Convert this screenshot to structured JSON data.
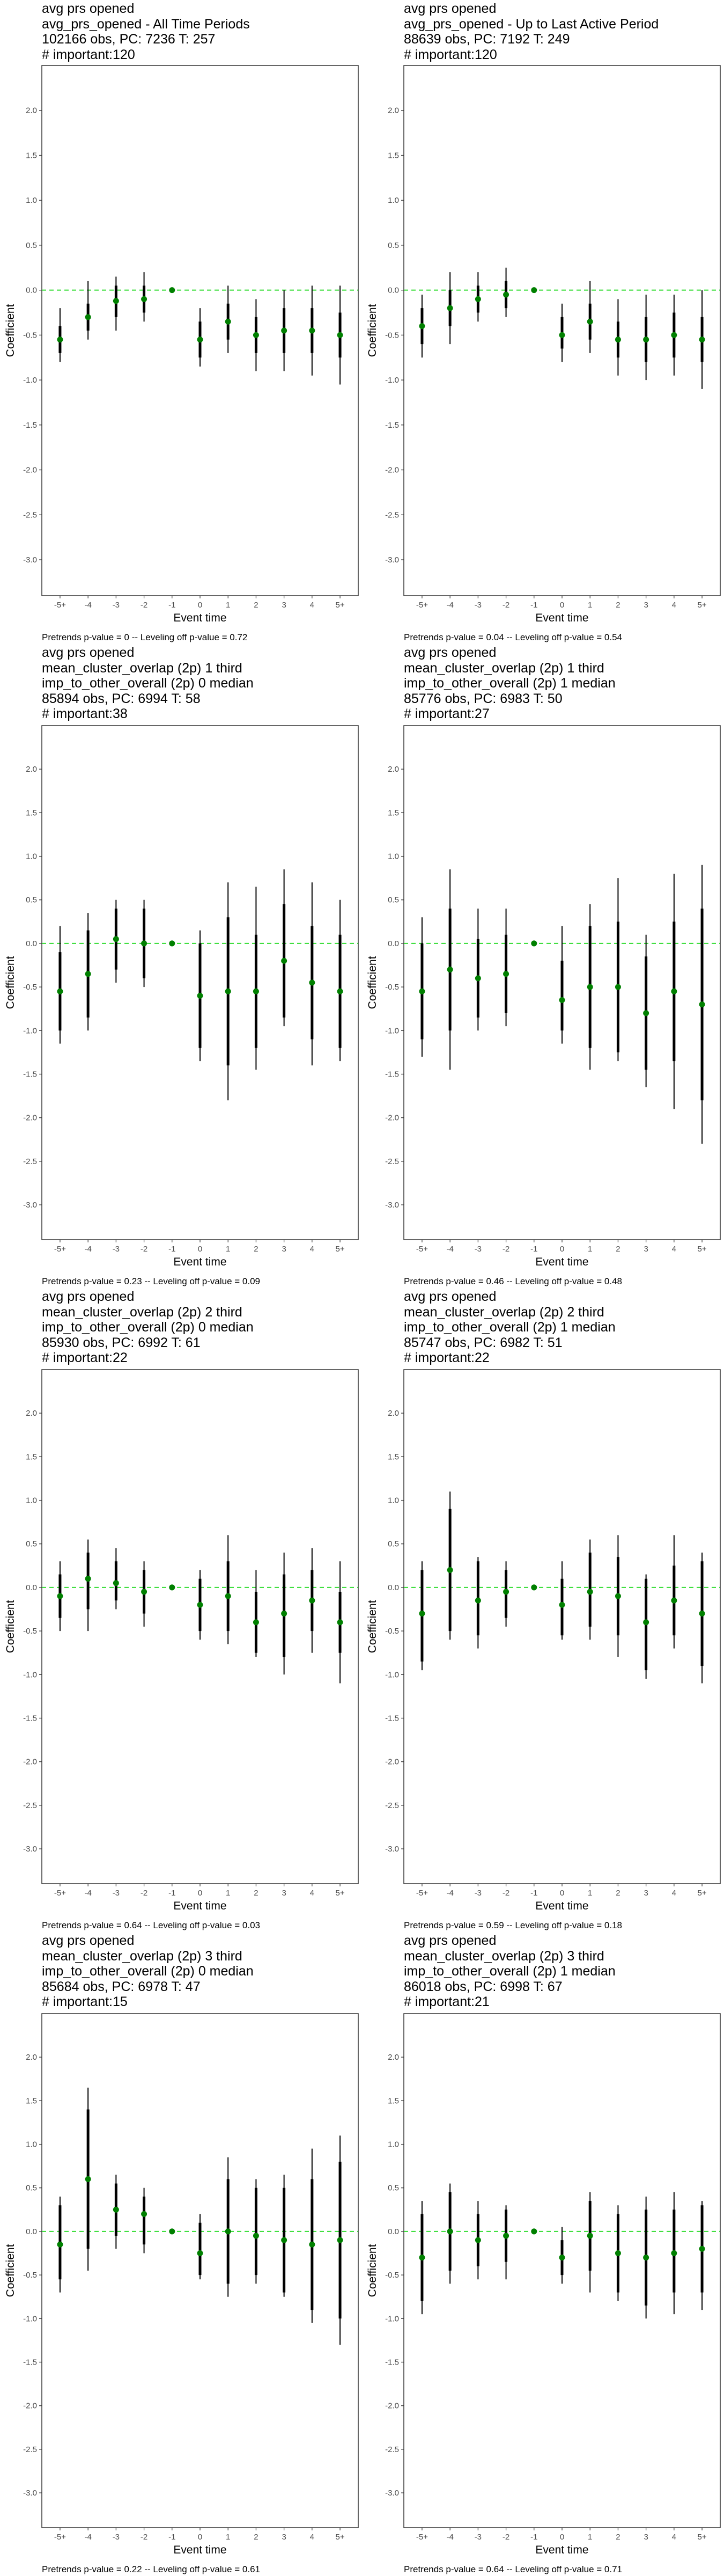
{
  "chart_data": [
    {
      "type": "errorbar",
      "title_lines": [
        "avg prs opened",
        "avg_prs_opened - All Time Periods",
        "102166 obs, PC: 7236 T: 257",
        "# important:120"
      ],
      "xlabel": "Event time",
      "ylabel": "Coefficient",
      "ylim": [
        -3.4,
        2.5
      ],
      "yticks": [
        2.0,
        1.5,
        1.0,
        0.5,
        0.0,
        -0.5,
        -1.0,
        -1.5,
        -2.0,
        -2.5,
        -3.0
      ],
      "ytick_labels": [
        "2.0",
        "1.5",
        "1.0",
        "0.5",
        "0.0",
        "-0.5",
        "-1.0",
        "-1.5",
        "-2.0",
        "-2.5",
        "-3.0"
      ],
      "categories": [
        "-5+",
        "-4",
        "-3",
        "-2",
        "-1",
        "0",
        "1",
        "2",
        "3",
        "4",
        "5+"
      ],
      "estimates": [
        -0.55,
        -0.3,
        -0.12,
        -0.1,
        0.0,
        -0.55,
        -0.35,
        -0.5,
        -0.45,
        -0.45,
        -0.5
      ],
      "ci_inner_low": [
        -0.7,
        -0.45,
        -0.3,
        -0.25,
        0.0,
        -0.75,
        -0.55,
        -0.7,
        -0.7,
        -0.7,
        -0.75
      ],
      "ci_inner_high": [
        -0.4,
        -0.15,
        0.05,
        0.05,
        0.0,
        -0.35,
        -0.15,
        -0.3,
        -0.2,
        -0.2,
        -0.25
      ],
      "ci_outer_low": [
        -0.8,
        -0.55,
        -0.45,
        -0.35,
        0.0,
        -0.85,
        -0.7,
        -0.9,
        -0.9,
        -0.95,
        -1.05
      ],
      "ci_outer_high": [
        -0.2,
        0.1,
        0.15,
        0.2,
        0.0,
        -0.2,
        0.05,
        -0.1,
        0.0,
        0.05,
        0.05
      ],
      "footer": "Pretrends p-value = 0 -- Leveling off p-value = 0.72"
    },
    {
      "type": "errorbar",
      "title_lines": [
        "avg prs opened",
        "avg_prs_opened - Up to Last Active Period",
        "88639 obs, PC: 7192 T: 249",
        "# important:120"
      ],
      "xlabel": "Event time",
      "ylabel": "Coefficient",
      "ylim": [
        -3.4,
        2.5
      ],
      "yticks": [
        2.0,
        1.5,
        1.0,
        0.5,
        0.0,
        -0.5,
        -1.0,
        -1.5,
        -2.0,
        -2.5,
        -3.0
      ],
      "ytick_labels": [
        "2.0",
        "1.5",
        "1.0",
        "0.5",
        "0.0",
        "-0.5",
        "-1.0",
        "-1.5",
        "-2.0",
        "-2.5",
        "-3.0"
      ],
      "categories": [
        "-5+",
        "-4",
        "-3",
        "-2",
        "-1",
        "0",
        "1",
        "2",
        "3",
        "4",
        "5+"
      ],
      "estimates": [
        -0.4,
        -0.2,
        -0.1,
        -0.05,
        0.0,
        -0.5,
        -0.35,
        -0.55,
        -0.55,
        -0.5,
        -0.55
      ],
      "ci_inner_low": [
        -0.6,
        -0.4,
        -0.25,
        -0.2,
        0.0,
        -0.65,
        -0.55,
        -0.75,
        -0.8,
        -0.75,
        -0.8
      ],
      "ci_inner_high": [
        -0.2,
        0.0,
        0.05,
        0.1,
        0.0,
        -0.3,
        -0.15,
        -0.35,
        -0.3,
        -0.25,
        -0.3
      ],
      "ci_outer_low": [
        -0.75,
        -0.6,
        -0.35,
        -0.3,
        0.0,
        -0.8,
        -0.7,
        -0.95,
        -1.0,
        -0.95,
        -1.1
      ],
      "ci_outer_high": [
        -0.05,
        0.2,
        0.2,
        0.25,
        0.0,
        -0.15,
        0.1,
        -0.1,
        -0.05,
        -0.05,
        0.0
      ],
      "footer": "Pretrends p-value = 0.04 -- Leveling off p-value = 0.54"
    },
    {
      "type": "errorbar",
      "title_lines": [
        "avg prs opened",
        "mean_cluster_overlap (2p) 1 third",
        "imp_to_other_overall (2p) 0 median",
        "85894 obs, PC: 6994 T: 58",
        "# important:38"
      ],
      "xlabel": "Event time",
      "ylabel": "Coefficient",
      "ylim": [
        -3.4,
        2.5
      ],
      "yticks": [
        2.0,
        1.5,
        1.0,
        0.5,
        0.0,
        -0.5,
        -1.0,
        -1.5,
        -2.0,
        -2.5,
        -3.0
      ],
      "ytick_labels": [
        "2.0",
        "1.5",
        "1.0",
        "0.5",
        "0.0",
        "-0.5",
        "-1.0",
        "-1.5",
        "-2.0",
        "-2.5",
        "-3.0"
      ],
      "categories": [
        "-5+",
        "-4",
        "-3",
        "-2",
        "-1",
        "0",
        "1",
        "2",
        "3",
        "4",
        "5+"
      ],
      "estimates": [
        -0.55,
        -0.35,
        0.05,
        0.0,
        0.0,
        -0.6,
        -0.55,
        -0.55,
        -0.2,
        -0.45,
        -0.55
      ],
      "ci_inner_low": [
        -1.0,
        -0.85,
        -0.3,
        -0.4,
        0.0,
        -1.2,
        -1.4,
        -1.2,
        -0.85,
        -1.1,
        -1.2
      ],
      "ci_inner_high": [
        -0.1,
        0.15,
        0.4,
        0.4,
        0.0,
        0.0,
        0.3,
        0.1,
        0.45,
        0.2,
        0.1
      ],
      "ci_outer_low": [
        -1.15,
        -1.0,
        -0.45,
        -0.5,
        0.0,
        -1.35,
        -1.8,
        -1.45,
        -0.95,
        -1.4,
        -1.35
      ],
      "ci_outer_high": [
        0.2,
        0.35,
        0.5,
        0.5,
        0.0,
        0.15,
        0.7,
        0.65,
        0.85,
        0.7,
        0.5
      ],
      "footer": "Pretrends p-value = 0.23 -- Leveling off p-value = 0.09"
    },
    {
      "type": "errorbar",
      "title_lines": [
        "avg prs opened",
        "mean_cluster_overlap (2p) 1 third",
        "imp_to_other_overall (2p) 1 median",
        "85776 obs, PC: 6983 T: 50",
        "# important:27"
      ],
      "xlabel": "Event time",
      "ylabel": "Coefficient",
      "ylim": [
        -3.4,
        2.5
      ],
      "yticks": [
        2.0,
        1.5,
        1.0,
        0.5,
        0.0,
        -0.5,
        -1.0,
        -1.5,
        -2.0,
        -2.5,
        -3.0
      ],
      "ytick_labels": [
        "2.0",
        "1.5",
        "1.0",
        "0.5",
        "0.0",
        "-0.5",
        "-1.0",
        "-1.5",
        "-2.0",
        "-2.5",
        "-3.0"
      ],
      "categories": [
        "-5+",
        "-4",
        "-3",
        "-2",
        "-1",
        "0",
        "1",
        "2",
        "3",
        "4",
        "5+"
      ],
      "estimates": [
        -0.55,
        -0.3,
        -0.4,
        -0.35,
        0.0,
        -0.65,
        -0.5,
        -0.5,
        -0.8,
        -0.55,
        -0.7
      ],
      "ci_inner_low": [
        -1.1,
        -1.0,
        -0.85,
        -0.8,
        0.0,
        -1.0,
        -1.2,
        -1.25,
        -1.45,
        -1.35,
        -1.8
      ],
      "ci_inner_high": [
        0.0,
        0.4,
        0.05,
        0.1,
        0.0,
        -0.2,
        0.2,
        0.25,
        -0.15,
        0.25,
        0.4
      ],
      "ci_outer_low": [
        -1.3,
        -1.45,
        -1.0,
        -0.95,
        0.0,
        -1.15,
        -1.45,
        -1.35,
        -1.65,
        -1.9,
        -2.3
      ],
      "ci_outer_high": [
        0.3,
        0.85,
        0.4,
        0.4,
        0.0,
        0.2,
        0.45,
        0.75,
        0.1,
        0.8,
        0.9
      ],
      "footer": "Pretrends p-value = 0.46 -- Leveling off p-value = 0.48"
    },
    {
      "type": "errorbar",
      "title_lines": [
        "avg prs opened",
        "mean_cluster_overlap (2p) 2 third",
        "imp_to_other_overall (2p) 0 median",
        "85930 obs, PC: 6992 T: 61",
        "# important:22"
      ],
      "xlabel": "Event time",
      "ylabel": "Coefficient",
      "ylim": [
        -3.4,
        2.5
      ],
      "yticks": [
        2.0,
        1.5,
        1.0,
        0.5,
        0.0,
        -0.5,
        -1.0,
        -1.5,
        -2.0,
        -2.5,
        -3.0
      ],
      "ytick_labels": [
        "2.0",
        "1.5",
        "1.0",
        "0.5",
        "0.0",
        "-0.5",
        "-1.0",
        "-1.5",
        "-2.0",
        "-2.5",
        "-3.0"
      ],
      "categories": [
        "-5+",
        "-4",
        "-3",
        "-2",
        "-1",
        "0",
        "1",
        "2",
        "3",
        "4",
        "5+"
      ],
      "estimates": [
        -0.1,
        0.1,
        0.05,
        -0.05,
        0.0,
        -0.2,
        -0.1,
        -0.4,
        -0.3,
        -0.15,
        -0.4
      ],
      "ci_inner_low": [
        -0.35,
        -0.25,
        -0.15,
        -0.3,
        0.0,
        -0.5,
        -0.5,
        -0.75,
        -0.8,
        -0.5,
        -0.75
      ],
      "ci_inner_high": [
        0.15,
        0.4,
        0.3,
        0.2,
        0.0,
        0.1,
        0.3,
        -0.05,
        0.15,
        0.2,
        -0.05
      ],
      "ci_outer_low": [
        -0.5,
        -0.5,
        -0.25,
        -0.45,
        0.0,
        -0.6,
        -0.65,
        -0.8,
        -1.0,
        -0.75,
        -1.1
      ],
      "ci_outer_high": [
        0.3,
        0.55,
        0.45,
        0.3,
        0.0,
        0.2,
        0.6,
        0.2,
        0.4,
        0.45,
        0.3
      ],
      "footer": "Pretrends p-value = 0.64 -- Leveling off p-value = 0.03"
    },
    {
      "type": "errorbar",
      "title_lines": [
        "avg prs opened",
        "mean_cluster_overlap (2p) 2 third",
        "imp_to_other_overall (2p) 1 median",
        "85747 obs, PC: 6982 T: 51",
        "# important:22"
      ],
      "xlabel": "Event time",
      "ylabel": "Coefficient",
      "ylim": [
        -3.4,
        2.5
      ],
      "yticks": [
        2.0,
        1.5,
        1.0,
        0.5,
        0.0,
        -0.5,
        -1.0,
        -1.5,
        -2.0,
        -2.5,
        -3.0
      ],
      "ytick_labels": [
        "2.0",
        "1.5",
        "1.0",
        "0.5",
        "0.0",
        "-0.5",
        "-1.0",
        "-1.5",
        "-2.0",
        "-2.5",
        "-3.0"
      ],
      "categories": [
        "-5+",
        "-4",
        "-3",
        "-2",
        "-1",
        "0",
        "1",
        "2",
        "3",
        "4",
        "5+"
      ],
      "estimates": [
        -0.3,
        0.2,
        -0.15,
        -0.05,
        0.0,
        -0.2,
        -0.05,
        -0.1,
        -0.4,
        -0.15,
        -0.3
      ],
      "ci_inner_low": [
        -0.85,
        -0.5,
        -0.55,
        -0.35,
        0.0,
        -0.55,
        -0.45,
        -0.55,
        -0.95,
        -0.55,
        -0.9
      ],
      "ci_inner_high": [
        0.2,
        0.9,
        0.3,
        0.2,
        0.0,
        0.1,
        0.4,
        0.35,
        0.1,
        0.25,
        0.3
      ],
      "ci_outer_low": [
        -0.95,
        -0.6,
        -0.7,
        -0.45,
        0.0,
        -0.6,
        -0.6,
        -0.8,
        -1.05,
        -0.7,
        -1.1
      ],
      "ci_outer_high": [
        0.3,
        1.1,
        0.35,
        0.3,
        0.0,
        0.3,
        0.55,
        0.6,
        0.15,
        0.6,
        0.4
      ],
      "footer": "Pretrends p-value = 0.59 -- Leveling off p-value = 0.18"
    },
    {
      "type": "errorbar",
      "title_lines": [
        "avg prs opened",
        "mean_cluster_overlap (2p) 3 third",
        "imp_to_other_overall (2p) 0 median",
        "85684 obs, PC: 6978 T: 47",
        "# important:15"
      ],
      "xlabel": "Event time",
      "ylabel": "Coefficient",
      "ylim": [
        -3.4,
        2.5
      ],
      "yticks": [
        2.0,
        1.5,
        1.0,
        0.5,
        0.0,
        -0.5,
        -1.0,
        -1.5,
        -2.0,
        -2.5,
        -3.0
      ],
      "ytick_labels": [
        "2.0",
        "1.5",
        "1.0",
        "0.5",
        "0.0",
        "-0.5",
        "-1.0",
        "-1.5",
        "-2.0",
        "-2.5",
        "-3.0"
      ],
      "categories": [
        "-5+",
        "-4",
        "-3",
        "-2",
        "-1",
        "0",
        "1",
        "2",
        "3",
        "4",
        "5+"
      ],
      "estimates": [
        -0.15,
        0.6,
        0.25,
        0.2,
        0.0,
        -0.25,
        0.0,
        -0.05,
        -0.1,
        -0.15,
        -0.1
      ],
      "ci_inner_low": [
        -0.55,
        -0.2,
        -0.05,
        -0.15,
        0.0,
        -0.5,
        -0.6,
        -0.5,
        -0.7,
        -0.9,
        -1.0
      ],
      "ci_inner_high": [
        0.3,
        1.4,
        0.55,
        0.4,
        0.0,
        0.1,
        0.6,
        0.5,
        0.5,
        0.6,
        0.8
      ],
      "ci_outer_low": [
        -0.7,
        -0.45,
        -0.2,
        -0.25,
        0.0,
        -0.55,
        -0.75,
        -0.6,
        -0.75,
        -1.05,
        -1.3
      ],
      "ci_outer_high": [
        0.4,
        1.65,
        0.65,
        0.5,
        0.0,
        0.2,
        0.85,
        0.6,
        0.65,
        0.95,
        1.1
      ],
      "footer": "Pretrends p-value = 0.22 -- Leveling off p-value = 0.61"
    },
    {
      "type": "errorbar",
      "title_lines": [
        "avg prs opened",
        "mean_cluster_overlap (2p) 3 third",
        "imp_to_other_overall (2p) 1 median",
        "86018 obs, PC: 6998 T: 67",
        "# important:21"
      ],
      "xlabel": "Event time",
      "ylabel": "Coefficient",
      "ylim": [
        -3.4,
        2.5
      ],
      "yticks": [
        2.0,
        1.5,
        1.0,
        0.5,
        0.0,
        -0.5,
        -1.0,
        -1.5,
        -2.0,
        -2.5,
        -3.0
      ],
      "ytick_labels": [
        "2.0",
        "1.5",
        "1.0",
        "0.5",
        "0.0",
        "-0.5",
        "-1.0",
        "-1.5",
        "-2.0",
        "-2.5",
        "-3.0"
      ],
      "categories": [
        "-5+",
        "-4",
        "-3",
        "-2",
        "-1",
        "0",
        "1",
        "2",
        "3",
        "4",
        "5+"
      ],
      "estimates": [
        -0.3,
        0.0,
        -0.1,
        -0.05,
        0.0,
        -0.3,
        -0.05,
        -0.25,
        -0.3,
        -0.25,
        -0.2
      ],
      "ci_inner_low": [
        -0.8,
        -0.45,
        -0.4,
        -0.35,
        0.0,
        -0.5,
        -0.45,
        -0.7,
        -0.85,
        -0.7,
        -0.7
      ],
      "ci_inner_high": [
        0.2,
        0.45,
        0.2,
        0.25,
        0.0,
        -0.1,
        0.35,
        0.2,
        0.25,
        0.25,
        0.3
      ],
      "ci_outer_low": [
        -0.95,
        -0.6,
        -0.55,
        -0.55,
        0.0,
        -0.6,
        -0.7,
        -0.8,
        -1.0,
        -0.95,
        -0.9
      ],
      "ci_outer_high": [
        0.35,
        0.55,
        0.35,
        0.3,
        0.0,
        0.05,
        0.45,
        0.3,
        0.4,
        0.45,
        0.35
      ],
      "footer": "Pretrends p-value = 0.64 -- Leveling off p-value = 0.71"
    }
  ],
  "colors": {
    "background": "#ffffff",
    "panel_border": "#333333",
    "zero_line": "#33dd33",
    "point": "#008000",
    "errorbar": "#000000",
    "tick_text": "#4d4d4d"
  }
}
